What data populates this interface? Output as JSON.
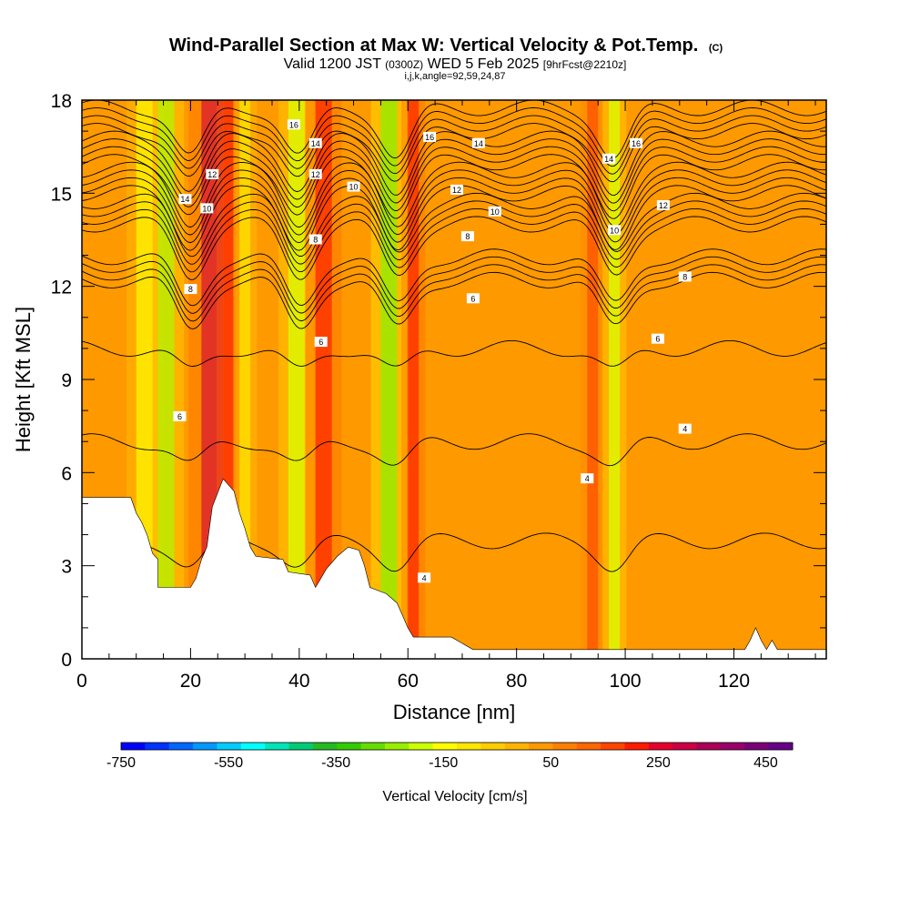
{
  "header": {
    "title": "Wind-Parallel Section at Max W: Vertical Velocity & Pot.Temp.",
    "title_units": "(C)",
    "valid_prefix": "Valid 1200 JST",
    "valid_utc": "(0300Z)",
    "valid_date": "WED 5 Feb 2025",
    "forecast_tag": "[9hrFcst@2210z]",
    "indices": "i,j,k,angle=92,59,24,87"
  },
  "chart_data": {
    "type": "heatmap",
    "xlabel": "Distance [nm]",
    "ylabel": "Height [Kft MSL]",
    "xlim": [
      0,
      137
    ],
    "ylim": [
      0,
      18
    ],
    "x_ticks": [
      0,
      20,
      40,
      60,
      80,
      100,
      120
    ],
    "y_ticks": [
      0,
      3,
      6,
      9,
      12,
      15,
      18
    ],
    "grid": false,
    "colorbar": {
      "label": "Vertical Velocity [cm/s]",
      "tick_labels": [
        "-750",
        "-550",
        "-350",
        "-150",
        "50",
        "250",
        "450"
      ],
      "tick_values": [
        -750,
        -550,
        -350,
        -150,
        50,
        250,
        450
      ],
      "range": [
        -750,
        500
      ],
      "colors": [
        "#0000ff",
        "#0033ff",
        "#0066ff",
        "#0099ff",
        "#00ccff",
        "#00ffff",
        "#00e6b8",
        "#00cc77",
        "#22bb22",
        "#33cc00",
        "#66dd00",
        "#99ee00",
        "#ccff00",
        "#ffff00",
        "#ffe600",
        "#ffcc00",
        "#ffb300",
        "#ff9900",
        "#ff8000",
        "#ff6600",
        "#ff4400",
        "#ff1a00",
        "#e6002e",
        "#cc0044",
        "#aa0055",
        "#99006a",
        "#7a0078",
        "#660088"
      ]
    },
    "velocity_bands": [
      {
        "x": 10,
        "w": 3,
        "value": -150
      },
      {
        "x": 14,
        "w": 3,
        "value": -250
      },
      {
        "x": 22,
        "w": 4,
        "value": 280
      },
      {
        "x": 26,
        "w": 2,
        "value": 200
      },
      {
        "x": 29,
        "w": 2,
        "value": -100
      },
      {
        "x": 38,
        "w": 3,
        "value": -200
      },
      {
        "x": 43,
        "w": 3,
        "value": 200
      },
      {
        "x": 55,
        "w": 3,
        "value": -300
      },
      {
        "x": 60,
        "w": 2,
        "value": 220
      },
      {
        "x": 93,
        "w": 2,
        "value": 150
      },
      {
        "x": 97,
        "w": 2,
        "value": -200
      }
    ],
    "terrain": [
      [
        0,
        5.2
      ],
      [
        9,
        5.2
      ],
      [
        10,
        4.7
      ],
      [
        11,
        4.4
      ],
      [
        12,
        4.0
      ],
      [
        13,
        3.4
      ],
      [
        14,
        3.2
      ],
      [
        14,
        2.3
      ],
      [
        20,
        2.3
      ],
      [
        21,
        2.6
      ],
      [
        22,
        3.2
      ],
      [
        23,
        3.6
      ],
      [
        24,
        4.9
      ],
      [
        26,
        5.8
      ],
      [
        28,
        5.4
      ],
      [
        29,
        4.7
      ],
      [
        30,
        4.2
      ],
      [
        31,
        3.6
      ],
      [
        32,
        3.3
      ],
      [
        37,
        3.2
      ],
      [
        38,
        2.8
      ],
      [
        42,
        2.7
      ],
      [
        43,
        2.3
      ],
      [
        44,
        2.6
      ],
      [
        45,
        2.9
      ],
      [
        47,
        3.3
      ],
      [
        49,
        3.6
      ],
      [
        51,
        3.5
      ],
      [
        52,
        3.0
      ],
      [
        53,
        2.3
      ],
      [
        56,
        2.1
      ],
      [
        58,
        1.8
      ],
      [
        59,
        1.4
      ],
      [
        60,
        1.0
      ],
      [
        61,
        0.7
      ],
      [
        68,
        0.7
      ],
      [
        72,
        0.3
      ],
      [
        122,
        0.3
      ],
      [
        123,
        0.6
      ],
      [
        124,
        1.0
      ],
      [
        125,
        0.6
      ],
      [
        126,
        0.3
      ],
      [
        127,
        0.6
      ],
      [
        128,
        0.3
      ],
      [
        137,
        0.3
      ]
    ],
    "theta_contours": [
      {
        "level": 4,
        "label": "4",
        "base": 3.8
      },
      {
        "level": 6,
        "label": "6",
        "base": 7.0
      },
      {
        "level": 6,
        "label": "6",
        "base": 10.0
      },
      {
        "level": 8,
        "label": "8",
        "base": 12.2
      },
      {
        "level": 10,
        "label": "10",
        "base": 14.0
      },
      {
        "level": 12,
        "label": "12",
        "base": 15.0
      },
      {
        "level": 14,
        "label": "14",
        "base": 16.0
      },
      {
        "level": 16,
        "label": "16",
        "base": 17.0
      }
    ],
    "contour_labels": [
      {
        "x": 18,
        "y": 7.8,
        "text": "6"
      },
      {
        "x": 44,
        "y": 10.2,
        "text": "6"
      },
      {
        "x": 72,
        "y": 11.6,
        "text": "6"
      },
      {
        "x": 106,
        "y": 10.3,
        "text": "6"
      },
      {
        "x": 20,
        "y": 11.9,
        "text": "8"
      },
      {
        "x": 43,
        "y": 13.5,
        "text": "8"
      },
      {
        "x": 71,
        "y": 13.6,
        "text": "8"
      },
      {
        "x": 111,
        "y": 12.3,
        "text": "8"
      },
      {
        "x": 23,
        "y": 14.5,
        "text": "10"
      },
      {
        "x": 50,
        "y": 15.2,
        "text": "10"
      },
      {
        "x": 76,
        "y": 14.4,
        "text": "10"
      },
      {
        "x": 98,
        "y": 13.8,
        "text": "10"
      },
      {
        "x": 24,
        "y": 15.6,
        "text": "12"
      },
      {
        "x": 43,
        "y": 15.6,
        "text": "12"
      },
      {
        "x": 69,
        "y": 15.1,
        "text": "12"
      },
      {
        "x": 107,
        "y": 14.6,
        "text": "12"
      },
      {
        "x": 19,
        "y": 14.8,
        "text": "14"
      },
      {
        "x": 43,
        "y": 16.6,
        "text": "14"
      },
      {
        "x": 73,
        "y": 16.6,
        "text": "14"
      },
      {
        "x": 97,
        "y": 16.1,
        "text": "14"
      },
      {
        "x": 39,
        "y": 17.2,
        "text": "16"
      },
      {
        "x": 64,
        "y": 16.8,
        "text": "16"
      },
      {
        "x": 102,
        "y": 16.6,
        "text": "16"
      },
      {
        "x": 63,
        "y": 2.6,
        "text": "4"
      },
      {
        "x": 93,
        "y": 5.8,
        "text": "4"
      },
      {
        "x": 111,
        "y": 7.4,
        "text": "4"
      }
    ]
  }
}
